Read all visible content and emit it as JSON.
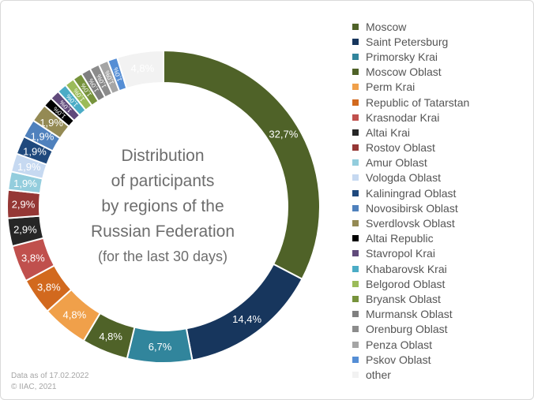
{
  "chart_data": {
    "type": "pie",
    "title": "Distribution of participants by regions of the Russian Federation",
    "title_lines": [
      "Distribution",
      "of participants",
      "by regions of the",
      "Russian Federation"
    ],
    "subtitle": "(for the last 30 days)",
    "legend_position": "right",
    "slices": [
      {
        "label": "Moscow",
        "value": 32.7,
        "value_label": "32,7%",
        "color": "#4f6228"
      },
      {
        "label": "Saint Petersburg",
        "value": 14.4,
        "value_label": "14,4%",
        "color": "#17365d"
      },
      {
        "label": "Primorsky Krai",
        "value": 6.7,
        "value_label": "6,7%",
        "color": "#31859c"
      },
      {
        "label": "Moscow Oblast",
        "value": 4.8,
        "value_label": "4,8%",
        "color": "#4f6228"
      },
      {
        "label": "Perm Krai",
        "value": 4.8,
        "value_label": "4,8%",
        "color": "#f0a04a"
      },
      {
        "label": "Republic of Tatarstan",
        "value": 3.8,
        "value_label": "3,8%",
        "color": "#d2691e"
      },
      {
        "label": "Krasnodar Krai",
        "value": 3.8,
        "value_label": "3,8%",
        "color": "#c0504d"
      },
      {
        "label": "Altai Krai",
        "value": 2.9,
        "value_label": "2,9%",
        "color": "#262626"
      },
      {
        "label": "Rostov Oblast",
        "value": 2.9,
        "value_label": "2,9%",
        "color": "#953735"
      },
      {
        "label": "Amur Oblast",
        "value": 1.9,
        "value_label": "1,9%",
        "color": "#93cddd"
      },
      {
        "label": "Vologda Oblast",
        "value": 1.9,
        "value_label": "1,9%",
        "color": "#c6d9f1"
      },
      {
        "label": "Kaliningrad Oblast",
        "value": 1.9,
        "value_label": "1,9%",
        "color": "#1f497d"
      },
      {
        "label": "Novosibirsk Oblast",
        "value": 1.9,
        "value_label": "1,9%",
        "color": "#4f81bd"
      },
      {
        "label": "Sverdlovsk Oblast",
        "value": 1.9,
        "value_label": "1,9%",
        "color": "#948a54"
      },
      {
        "label": "Altai Republic",
        "value": 1.0,
        "value_label": "1,0%",
        "color": "#000000"
      },
      {
        "label": "Stavropol Krai",
        "value": 1.0,
        "value_label": "1,0%",
        "color": "#604a7b"
      },
      {
        "label": "Khabarovsk Krai",
        "value": 1.0,
        "value_label": "1,0%",
        "color": "#4bacc6"
      },
      {
        "label": "Belgorod Oblast",
        "value": 1.0,
        "value_label": "1,0%",
        "color": "#9bbb59"
      },
      {
        "label": "Bryansk Oblast",
        "value": 1.0,
        "value_label": "1,0%",
        "color": "#77933c"
      },
      {
        "label": "Murmansk Oblast",
        "value": 1.0,
        "value_label": "1,0%",
        "color": "#7f7f7f"
      },
      {
        "label": "Orenburg Oblast",
        "value": 1.0,
        "value_label": "1,0%",
        "color": "#8c8c8c"
      },
      {
        "label": "Penza Oblast",
        "value": 1.0,
        "value_label": "1,0%",
        "color": "#a5a5a5"
      },
      {
        "label": "Pskov Oblast",
        "value": 1.0,
        "value_label": "1,0%",
        "color": "#558ed5"
      },
      {
        "label": "other",
        "value": 4.8,
        "value_label": "4,8%",
        "color": "#f2f2f2"
      }
    ]
  },
  "footer": {
    "date_note": "Data as of 17.02.2022",
    "copyright": "© IIAC, 2021"
  }
}
